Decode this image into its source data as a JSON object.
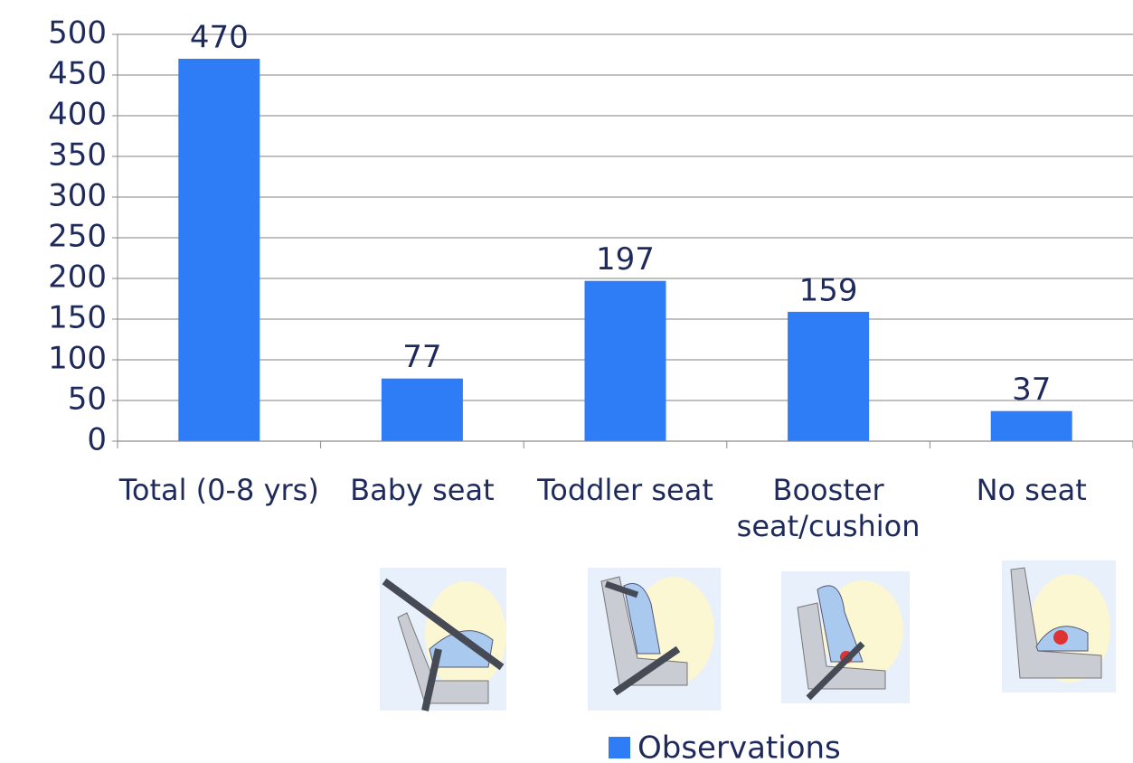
{
  "chart_data": {
    "type": "bar",
    "categories": [
      "Total (0-8 yrs)",
      "Baby seat",
      "Toddler seat",
      "Booster seat/cushion",
      "No seat"
    ],
    "series": [
      {
        "name": "Observations",
        "color": "#2e7df7",
        "values": [
          470,
          77,
          197,
          159,
          37
        ]
      }
    ],
    "ylim": [
      0,
      500
    ],
    "yticks": [
      0,
      50,
      100,
      150,
      200,
      250,
      300,
      350,
      400,
      450,
      500
    ],
    "grid": true,
    "legend": "bottom"
  }
}
